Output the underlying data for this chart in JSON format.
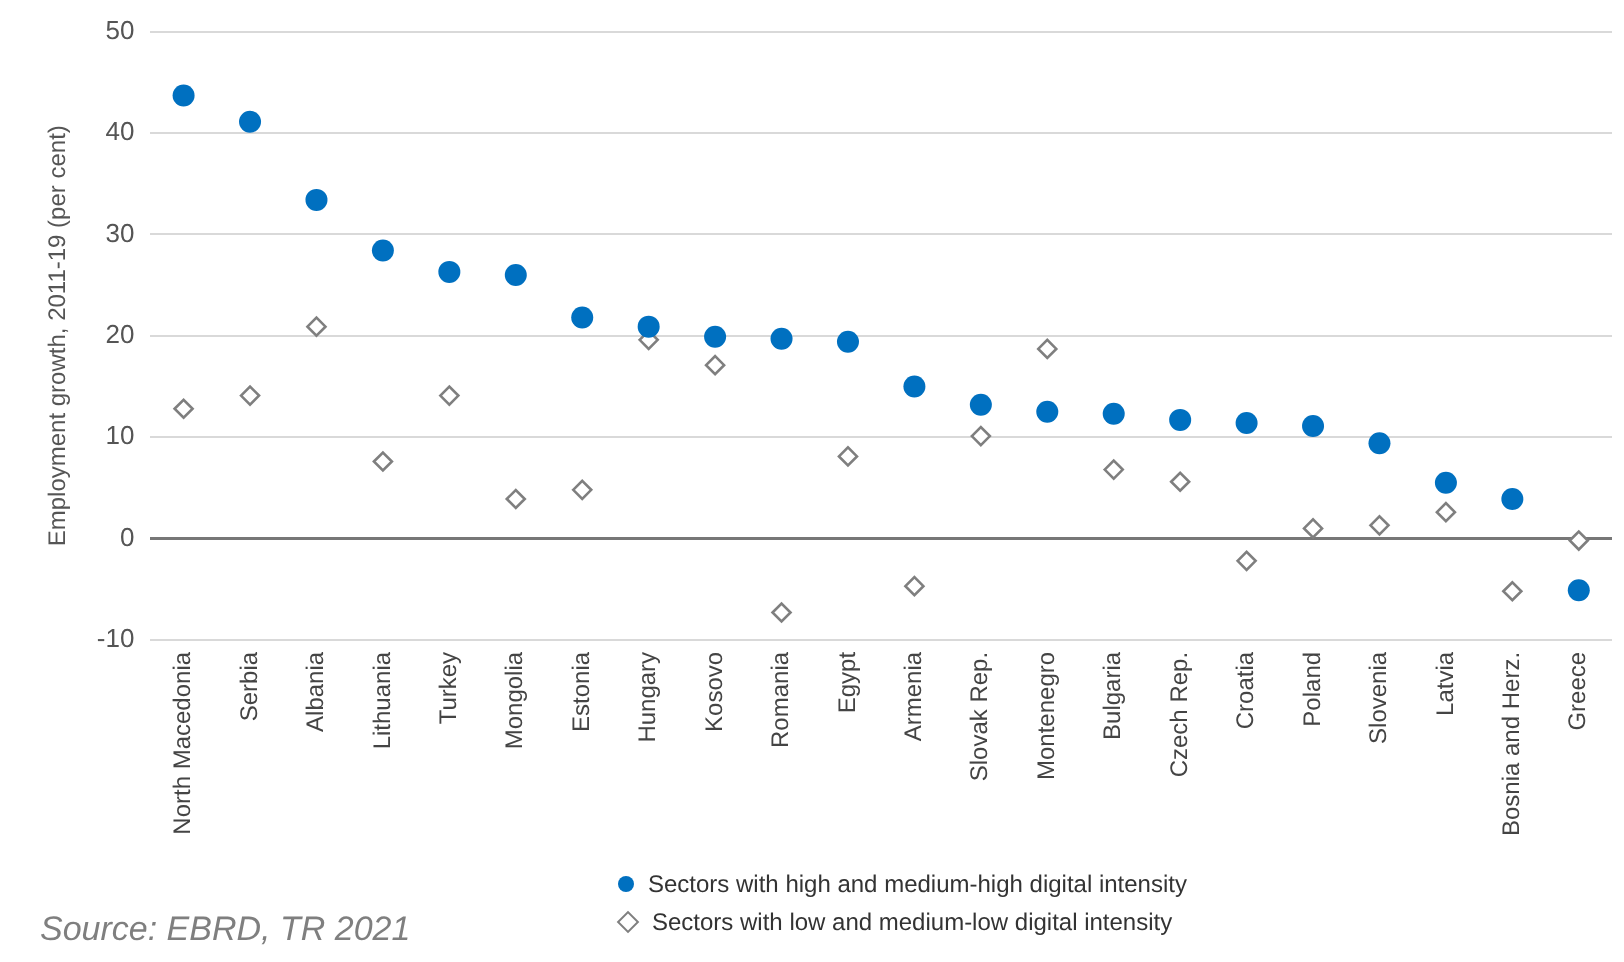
{
  "chart_data": {
    "type": "scatter",
    "ylabel": "Employment growth, 2011-19 (per cent)",
    "categories": [
      "North Macedonia",
      "Serbia",
      "Albania",
      "Lithuania",
      "Turkey",
      "Mongolia",
      "Estonia",
      "Hungary",
      "Kosovo",
      "Romania",
      "Egypt",
      "Armenia",
      "Slovak Rep.",
      "Montenegro",
      "Bulgaria",
      "Czech Rep.",
      "Croatia",
      "Poland",
      "Slovenia",
      "Latvia",
      "Bosnia and Herz.",
      "Greece"
    ],
    "series": [
      {
        "name": "Sectors with high and medium-high digital intensity",
        "color": "#0070c0",
        "marker": "circle",
        "values": [
          43.7,
          41.1,
          33.4,
          28.4,
          26.3,
          26.0,
          21.8,
          20.9,
          19.9,
          19.7,
          19.4,
          15.0,
          13.2,
          12.5,
          12.3,
          11.7,
          11.4,
          11.1,
          9.4,
          5.5,
          3.9,
          -5.1
        ]
      },
      {
        "name": "Sectors with low and medium-low digital intensity",
        "color": "#7f7f7f",
        "marker": "diamond",
        "values": [
          12.8,
          14.1,
          20.9,
          7.6,
          14.1,
          3.9,
          4.8,
          19.6,
          17.1,
          -7.3,
          8.1,
          -4.7,
          10.1,
          18.7,
          6.8,
          5.6,
          -2.2,
          1.0,
          1.3,
          2.6,
          -5.2,
          -0.2
        ]
      }
    ],
    "ylim": [
      -10,
      50
    ],
    "yticks": [
      -10,
      0,
      10,
      20,
      30,
      40,
      50
    ],
    "grid": "y",
    "legend": "bottom",
    "annotations": [
      "Source: EBRD, TR 2021"
    ]
  }
}
